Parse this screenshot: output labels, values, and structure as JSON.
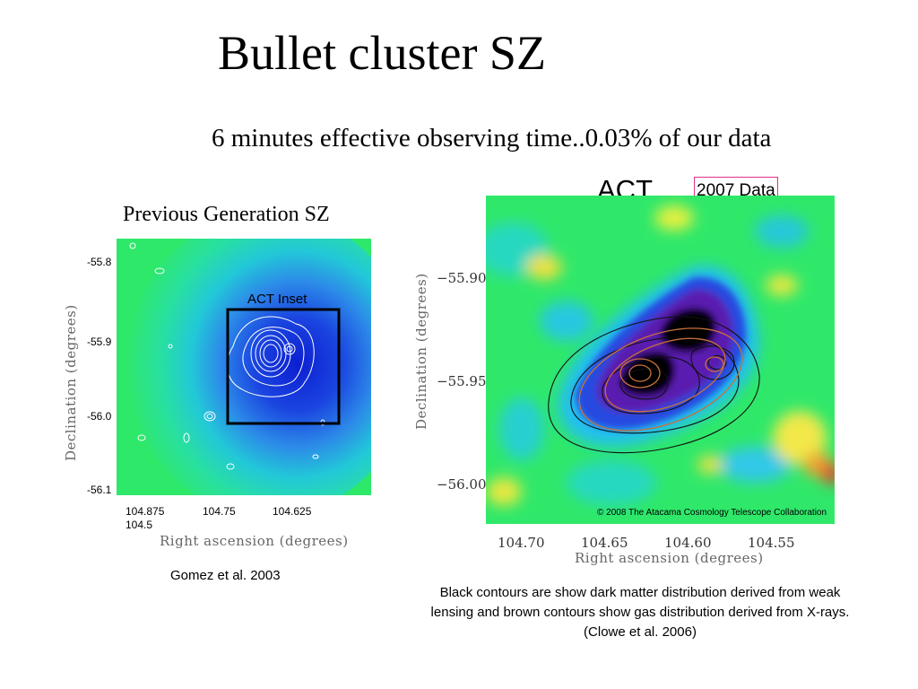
{
  "slide": {
    "title": "Bullet cluster SZ",
    "subtitle": "6 minutes effective observing time..0.03% of our data"
  },
  "left_panel": {
    "heading": "Previous Generation SZ",
    "inset_label": "ACT Inset",
    "y_ticks": [
      "-55.8",
      "-55.9",
      "-56.0",
      "-56.1"
    ],
    "x_ticks": [
      "104.875",
      "104.75",
      "104.625",
      "104.5"
    ],
    "y_label": "Declination (degrees)",
    "x_label": "Right ascension (degrees)",
    "credit": "Gomez et al. 2003"
  },
  "right_panel": {
    "label": "ACT",
    "badge": "2007 Data",
    "y_ticks": [
      "−55.90",
      "−55.95",
      "−56.00"
    ],
    "x_ticks": [
      "104.70",
      "104.65",
      "104.60",
      "104.55"
    ],
    "y_label": "Declination (degrees)",
    "x_label": "Right ascension (degrees)",
    "copyright": "© 2008 The Atacama Cosmology Telescope Collaboration",
    "caption": "Black contours are show dark matter distribution derived from weak lensing and brown contours show gas distribution derived from X-rays. (Clowe et al. 2006)"
  },
  "colors": {
    "badge_border": "#e0308a",
    "map_green": "#2fe86a",
    "map_blue": "#1f3fd8",
    "map_purple": "#5a1fb0",
    "map_yellow": "#f2e84a",
    "map_red": "#e8392a",
    "gas_contour": "#c8703a"
  }
}
